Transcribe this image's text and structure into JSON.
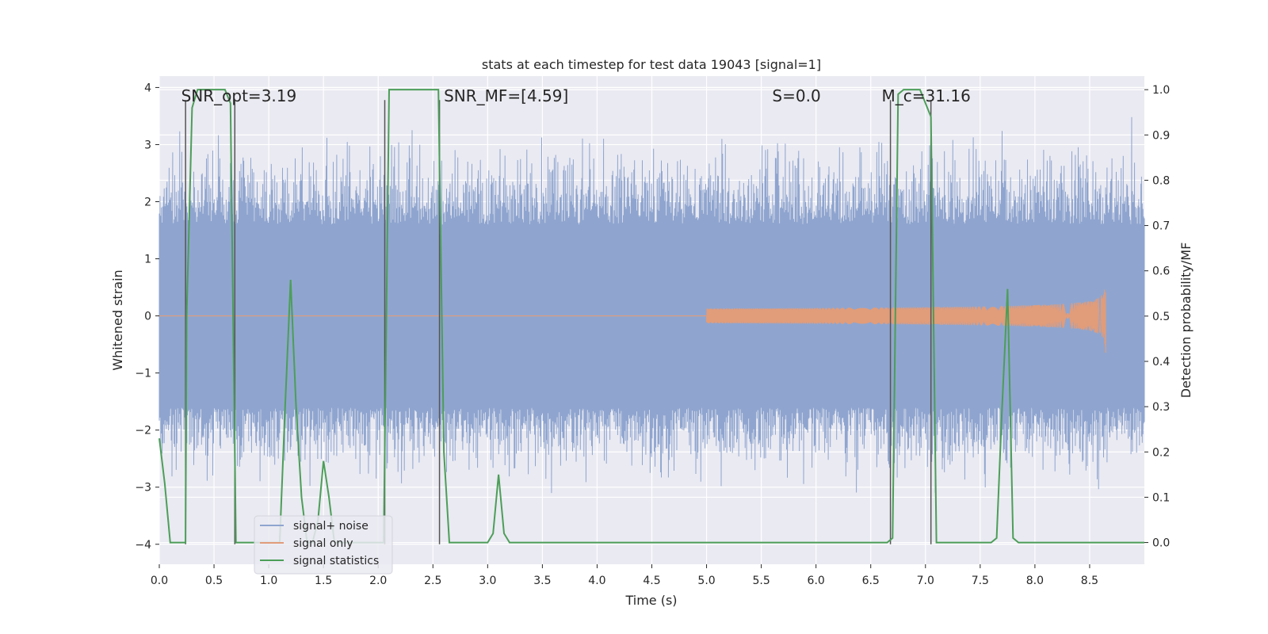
{
  "chart_data": {
    "type": "line",
    "title": "stats at each timestep for test data 19043 [signal=1]",
    "xlabel": "Time (s)",
    "ylabel": "Whitened strain",
    "ylabel_right": "Detection probability/MF",
    "xlim": [
      0.0,
      9.0
    ],
    "ylim": [
      -4.35,
      4.2
    ],
    "ylim_right": [
      -0.048,
      1.03
    ],
    "xticks": [
      0.0,
      0.5,
      1.0,
      1.5,
      2.0,
      2.5,
      3.0,
      3.5,
      4.0,
      4.5,
      5.0,
      5.5,
      6.0,
      6.5,
      7.0,
      7.5,
      8.0,
      8.5
    ],
    "yticks": [
      -4,
      -3,
      -2,
      -1,
      0,
      1,
      2,
      3,
      4
    ],
    "yticks_right": [
      0.0,
      0.1,
      0.2,
      0.3,
      0.4,
      0.5,
      0.6,
      0.7,
      0.8,
      0.9,
      1.0
    ],
    "xtick_labels": [
      "0.0",
      "0.5",
      "1.0",
      "1.5",
      "2.0",
      "2.5",
      "3.0",
      "3.5",
      "4.0",
      "4.5",
      "5.0",
      "5.5",
      "6.0",
      "6.5",
      "7.0",
      "7.5",
      "8.0",
      "8.5"
    ],
    "ytick_labels": [
      "−4",
      "−3",
      "−2",
      "−1",
      "0",
      "1",
      "2",
      "3",
      "4"
    ],
    "ytick_labels_right": [
      "0.0",
      "0.1",
      "0.2",
      "0.3",
      "0.4",
      "0.5",
      "0.6",
      "0.7",
      "0.8",
      "0.9",
      "1.0"
    ],
    "annotations": [
      "SNR_opt=3.19",
      "SNR_MF=[4.59]",
      "S=0.0",
      "M_c=31.16"
    ],
    "annotation_x": [
      0.2,
      2.6,
      5.6,
      6.6
    ],
    "annotation_y": 3.85,
    "vertical_lines_t": [
      0.24,
      0.69,
      2.06,
      2.56,
      6.68,
      7.05
    ],
    "vertical_lines_range": [
      -4.0,
      3.78
    ],
    "legend": {
      "position": "lower-left",
      "entries": [
        "signal+ noise",
        "signal only",
        "signal statistics"
      ]
    },
    "series": [
      {
        "name": "signal+ noise",
        "color": "#8fa5cf",
        "envelope": {
          "typical_abs": 1.6,
          "max_abs": 3.9
        }
      },
      {
        "name": "signal only",
        "color": "#e19c7a",
        "chirp": {
          "start": 5.0,
          "merger": 8.65,
          "peak_amplitude": 0.8
        }
      },
      {
        "name": "signal statistics",
        "color": "#4c9e58",
        "axis": "right",
        "t": [
          0.0,
          0.05,
          0.1,
          0.24,
          0.25,
          0.3,
          0.35,
          0.4,
          0.45,
          0.5,
          0.55,
          0.6,
          0.65,
          0.7,
          0.75,
          0.8,
          0.85,
          0.9,
          0.95,
          1.0,
          1.05,
          1.1,
          1.15,
          1.2,
          1.25,
          1.3,
          1.35,
          1.4,
          1.45,
          1.5,
          1.55,
          1.6,
          1.65,
          2.0,
          2.05,
          2.1,
          2.15,
          2.2,
          2.55,
          2.6,
          2.65,
          2.7,
          3.0,
          3.05,
          3.1,
          3.15,
          3.2,
          3.25,
          6.65,
          6.7,
          6.75,
          6.8,
          6.95,
          7.0,
          7.05,
          7.1,
          7.15,
          7.6,
          7.65,
          7.7,
          7.75,
          7.8,
          7.85,
          7.9,
          9.0
        ],
        "values": [
          0.23,
          0.13,
          0.0,
          0.0,
          0.5,
          0.96,
          1.0,
          1.0,
          1.0,
          1.0,
          1.0,
          1.0,
          0.97,
          0.0,
          0.0,
          0.0,
          0.0,
          0.0,
          0.0,
          0.0,
          0.0,
          0.0,
          0.3,
          0.58,
          0.3,
          0.1,
          0.0,
          0.0,
          0.05,
          0.18,
          0.1,
          0.0,
          0.0,
          0.0,
          0.0,
          1.0,
          1.0,
          1.0,
          1.0,
          0.2,
          0.0,
          0.0,
          0.0,
          0.02,
          0.15,
          0.02,
          0.0,
          0.0,
          0.0,
          0.01,
          0.99,
          1.0,
          1.0,
          0.97,
          0.94,
          0.0,
          0.0,
          0.0,
          0.01,
          0.3,
          0.56,
          0.01,
          0.0,
          0.0,
          0.0
        ]
      }
    ]
  }
}
